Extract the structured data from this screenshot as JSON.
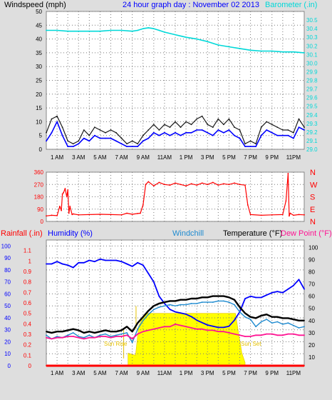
{
  "colors": {
    "windspeed": "#1a1a1a",
    "gust": "#6a6a6a",
    "wind_avg": "#0000ff",
    "barometer": "#00d8d8",
    "direction": "#ff0000",
    "rainfall": "#ff0000",
    "humidity": "#0000ff",
    "windchill": "#1f8bd0",
    "temperature": "#000000",
    "dewpoint": "#ff1493",
    "solar": "#ffff00",
    "solar_line": "#e6c200",
    "panel_bg": "#ffffff",
    "grid_dot": "#7a7a7a",
    "frame_bg": "#dedede"
  },
  "header": {
    "left_label": "Windspeed (mph)",
    "title": "24 hour graph day : November 02 2013",
    "right_label": "Barometer (.in)"
  },
  "time_axis": {
    "ticks": [
      {
        "hour": 1,
        "label": "1 AM"
      },
      {
        "hour": 3,
        "label": "3 AM"
      },
      {
        "hour": 5,
        "label": "5 AM"
      },
      {
        "hour": 7,
        "label": "7 AM"
      },
      {
        "hour": 9,
        "label": "9 AM"
      },
      {
        "hour": 11,
        "label": "11AM"
      },
      {
        "hour": 13,
        "label": "1 PM"
      },
      {
        "hour": 15,
        "label": "3 PM"
      },
      {
        "hour": 17,
        "label": "5 PM"
      },
      {
        "hour": 19,
        "label": "7 PM"
      },
      {
        "hour": 21,
        "label": "9 PM"
      },
      {
        "hour": 23,
        "label": "11PM"
      }
    ]
  },
  "compass_labels": [
    "N",
    "W",
    "S",
    "E",
    "N"
  ],
  "bottom_header": {
    "rainfall_label": "Rainfall (.in)",
    "humidity_label": "Humidity (%)",
    "windchill_label": "Windchill",
    "temperature_label": "Temperature (°F)",
    "dewpoint_label": "Dew Point (°F)"
  },
  "annotations": {
    "sunrise": "Sun Rise",
    "sunset": "Sun Set"
  },
  "chart_data": [
    {
      "id": "wind",
      "type": "line",
      "x_unit": "hour",
      "xlim": [
        0,
        24
      ],
      "y_left": {
        "label": "Windspeed (mph)",
        "ylim": [
          0,
          50
        ],
        "ticks": [
          0,
          5,
          10,
          15,
          20,
          25,
          30,
          35,
          40,
          45,
          50
        ]
      },
      "y_right": {
        "label": "Barometer (.in)",
        "ylim": [
          29.0,
          30.6
        ],
        "ticks": [
          "29.0",
          "29.1",
          "29.2",
          "29.3",
          "29.4",
          "29.5",
          "29.6",
          "29.7",
          "29.8",
          "29.9",
          "30.0",
          "30.1",
          "30.2",
          "30.3",
          "30.4",
          "30.5"
        ]
      },
      "grid": true,
      "series": [
        {
          "key": "gust",
          "axis": "left",
          "x": [
            0,
            0.5,
            1,
            1.5,
            2,
            2.5,
            3,
            3.5,
            4,
            4.5,
            5,
            5.5,
            6,
            6.5,
            7,
            7.5,
            8,
            8.5,
            9,
            9.5,
            10,
            10.5,
            11,
            11.5,
            12,
            12.5,
            13,
            13.5,
            14,
            14.5,
            15,
            15.5,
            16,
            16.5,
            17,
            17.5,
            18,
            18.5,
            19,
            19.5,
            20,
            20.5,
            21,
            21.5,
            22,
            22.5,
            23,
            23.5,
            24
          ],
          "y": [
            6,
            11,
            12,
            8,
            3,
            2,
            3,
            7,
            5,
            8,
            7,
            6,
            7,
            6,
            4,
            2,
            3,
            2,
            5,
            7,
            9,
            7,
            9,
            8,
            10,
            8,
            10,
            9,
            11,
            12,
            9,
            8,
            11,
            9,
            11,
            8,
            7,
            2,
            3,
            2,
            8,
            10,
            9,
            8,
            7,
            7,
            6,
            11,
            8
          ]
        },
        {
          "key": "wind_avg",
          "axis": "left",
          "x": [
            0,
            0.5,
            1,
            1.5,
            2,
            2.5,
            3,
            3.5,
            4,
            4.5,
            5,
            5.5,
            6,
            6.5,
            7,
            7.5,
            8,
            8.5,
            9,
            9.5,
            10,
            10.5,
            11,
            11.5,
            12,
            12.5,
            13,
            13.5,
            14,
            14.5,
            15,
            15.5,
            16,
            16.5,
            17,
            17.5,
            18,
            18.5,
            19,
            19.5,
            20,
            20.5,
            21,
            21.5,
            22,
            22.5,
            23,
            23.5,
            24
          ],
          "y": [
            3,
            6,
            10,
            5,
            1,
            1,
            2,
            4,
            3,
            5,
            4,
            4,
            4,
            3,
            2,
            1,
            1,
            1,
            3,
            4,
            6,
            5,
            6,
            5,
            6,
            5,
            6,
            6,
            7,
            7,
            6,
            5,
            7,
            6,
            7,
            5,
            4,
            1,
            1,
            1,
            5,
            7,
            6,
            5,
            5,
            5,
            4,
            8,
            7
          ]
        },
        {
          "key": "barometer",
          "axis": "right",
          "x": [
            0,
            1,
            2,
            3,
            4,
            5,
            6,
            7,
            8,
            8.5,
            9,
            9.5,
            10,
            10.5,
            11,
            12,
            13,
            14,
            15,
            16,
            17,
            18,
            19,
            20,
            21,
            22,
            23,
            24
          ],
          "y": [
            30.38,
            30.38,
            30.37,
            30.37,
            30.37,
            30.37,
            30.38,
            30.38,
            30.37,
            30.38,
            30.4,
            30.41,
            30.4,
            30.38,
            30.36,
            30.33,
            30.3,
            30.28,
            30.25,
            30.21,
            30.19,
            30.17,
            30.15,
            30.14,
            30.14,
            30.13,
            30.13,
            30.12
          ]
        }
      ]
    },
    {
      "id": "direction",
      "type": "line",
      "x_unit": "hour",
      "xlim": [
        0,
        24
      ],
      "y_left": {
        "ylim": [
          0,
          360
        ],
        "ticks": [
          0,
          90,
          180,
          270,
          360
        ]
      },
      "grid": true,
      "series": [
        {
          "key": "direction",
          "axis": "left",
          "x": [
            0,
            0.5,
            1,
            1.25,
            1.4,
            1.5,
            1.6,
            1.75,
            1.9,
            2,
            2.1,
            2.2,
            2.4,
            2.5,
            3,
            4,
            5,
            6,
            7,
            7.5,
            8,
            8.5,
            8.75,
            9,
            9.25,
            9.5,
            10,
            10.5,
            11,
            11.5,
            12,
            12.5,
            13,
            13.5,
            14,
            14.5,
            15,
            15.5,
            16,
            16.5,
            17,
            17.5,
            18,
            18.5,
            18.75,
            19,
            20,
            21,
            22,
            22.3,
            22.5,
            22.6,
            22.7,
            23,
            23.5,
            24
          ],
          "y": [
            40,
            45,
            42,
            110,
            80,
            200,
            210,
            240,
            180,
            230,
            60,
            110,
            50,
            55,
            48,
            50,
            52,
            50,
            48,
            60,
            52,
            58,
            60,
            120,
            270,
            290,
            260,
            285,
            270,
            265,
            280,
            270,
            260,
            275,
            265,
            280,
            270,
            285,
            265,
            275,
            270,
            280,
            270,
            265,
            120,
            50,
            45,
            48,
            50,
            150,
            350,
            40,
            60,
            45,
            50,
            48
          ]
        }
      ]
    },
    {
      "id": "climate",
      "type": "line",
      "x_unit": "hour",
      "xlim": [
        0,
        24
      ],
      "y_left": {
        "label": "Rainfall (.in)",
        "ylim": [
          0,
          1.2
        ],
        "ticks": [
          "0",
          "0.1",
          "0.2",
          "0.3",
          "0.4",
          "0.5",
          "0.6",
          "0.7",
          "0.8",
          "0.9",
          "1",
          "1.1"
        ]
      },
      "y_humidity": {
        "label": "Humidity (%)",
        "ylim": [
          0,
          105
        ],
        "ticks": [
          0,
          10,
          20,
          30,
          40,
          50,
          60,
          70,
          80,
          90,
          100
        ]
      },
      "y_right": {
        "label": "Temperature (°F)",
        "ylim": [
          3,
          106
        ],
        "ticks": [
          10,
          20,
          30,
          40,
          50,
          60,
          70,
          80,
          90,
          100
        ]
      },
      "grid": true,
      "solar_window": {
        "sunrise_hour": 7.6,
        "sunset_hour": 18.5
      },
      "series": [
        {
          "key": "rainfall",
          "axis": "left",
          "x": [
            0,
            24
          ],
          "y": [
            0,
            0
          ]
        },
        {
          "key": "humidity",
          "axis": "humidity",
          "x": [
            0,
            0.5,
            1,
            1.5,
            2,
            2.5,
            3,
            3.5,
            4,
            4.5,
            5,
            5.5,
            6,
            6.5,
            7,
            7.5,
            8,
            8.5,
            9,
            9.5,
            10,
            10.5,
            11,
            11.5,
            12,
            12.5,
            13,
            13.5,
            14,
            14.5,
            15,
            15.5,
            16,
            16.5,
            17,
            17.5,
            18,
            18.5,
            19,
            19.5,
            20,
            20.5,
            21,
            21.5,
            22,
            22.5,
            23,
            23.5,
            24
          ],
          "y": [
            85,
            85,
            87,
            85,
            84,
            82,
            86,
            86,
            88,
            87,
            89,
            88,
            88,
            88,
            87,
            85,
            83,
            86,
            84,
            77,
            70,
            58,
            52,
            47,
            45,
            44,
            43,
            41,
            38,
            36,
            34,
            33,
            32,
            32,
            33,
            38,
            45,
            56,
            58,
            57,
            57,
            59,
            61,
            62,
            61,
            64,
            67,
            72,
            64
          ]
        },
        {
          "key": "temperature",
          "axis": "right",
          "x": [
            0,
            0.5,
            1,
            1.5,
            2,
            2.5,
            3,
            3.5,
            4,
            4.5,
            5,
            5.5,
            6,
            6.5,
            7,
            7.5,
            8,
            8.5,
            9,
            9.5,
            10,
            10.5,
            11,
            11.5,
            12,
            12.5,
            13,
            13.5,
            14,
            14.5,
            15,
            15.5,
            16,
            16.5,
            17,
            17.5,
            18,
            18.5,
            19,
            19.5,
            20,
            20.5,
            21,
            21.5,
            22,
            22.5,
            23,
            23.5,
            24
          ],
          "y": [
            31,
            30,
            31,
            31,
            32,
            33,
            32,
            30,
            31,
            30,
            31,
            32,
            31,
            31,
            32,
            35,
            31,
            38,
            43,
            48,
            52,
            54,
            55,
            56,
            56,
            57,
            57,
            58,
            58,
            59,
            59,
            60,
            60,
            60,
            59,
            57,
            51,
            46,
            43,
            42,
            44,
            45,
            43,
            43,
            42,
            42,
            41,
            40,
            40
          ]
        },
        {
          "key": "windchill",
          "axis": "right",
          "x": [
            0,
            0.5,
            1,
            1.5,
            2,
            2.5,
            3,
            3.5,
            4,
            4.5,
            5,
            5.5,
            6,
            6.5,
            7,
            7.5,
            8,
            8.5,
            9,
            9.5,
            10,
            10.5,
            11,
            11.5,
            12,
            12.5,
            13,
            13.5,
            14,
            14.5,
            15,
            15.5,
            16,
            16.5,
            17,
            17.5,
            18,
            18.5,
            19,
            19.5,
            20,
            20.5,
            21,
            21.5,
            22,
            22.5,
            23,
            23.5,
            24
          ],
          "y": [
            28,
            25,
            27,
            26,
            28,
            30,
            27,
            26,
            28,
            26,
            28,
            29,
            27,
            28,
            29,
            30,
            22,
            33,
            40,
            45,
            49,
            51,
            52,
            53,
            52,
            53,
            53,
            54,
            54,
            55,
            55,
            55,
            56,
            56,
            55,
            53,
            47,
            43,
            41,
            35,
            39,
            41,
            38,
            39,
            37,
            38,
            36,
            34,
            35
          ]
        },
        {
          "key": "dewpoint",
          "axis": "right",
          "x": [
            0,
            0.5,
            1,
            1.5,
            2,
            2.5,
            3,
            3.5,
            4,
            4.5,
            5,
            5.5,
            6,
            6.5,
            7,
            7.5,
            8,
            8.5,
            9,
            9.5,
            10,
            10.5,
            11,
            11.5,
            12,
            12.5,
            13,
            13.5,
            14,
            14.5,
            15,
            15.5,
            16,
            16.5,
            17,
            17.5,
            18,
            18.5,
            19,
            19.5,
            20,
            20.5,
            21,
            21.5,
            22,
            22.5,
            23,
            23.5,
            24
          ],
          "y": [
            26,
            25,
            26,
            26,
            27,
            27,
            26,
            25,
            26,
            26,
            27,
            27,
            26,
            27,
            27,
            28,
            25,
            29,
            31,
            32,
            33,
            34,
            35,
            35,
            37,
            36,
            35,
            34,
            33,
            33,
            32,
            32,
            31,
            31,
            30,
            29,
            28,
            27,
            27,
            28,
            28,
            29,
            29,
            28,
            28,
            29,
            29,
            28,
            28
          ]
        }
      ]
    }
  ]
}
